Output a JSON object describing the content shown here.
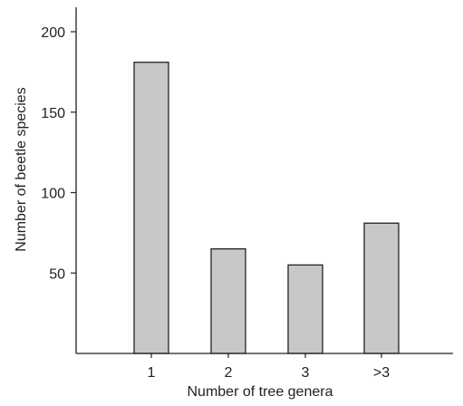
{
  "chart_data": {
    "type": "bar",
    "title": "",
    "xlabel": "Number of tree genera",
    "ylabel": "Number of beetle species",
    "categories": [
      "1",
      "2",
      "3",
      ">3"
    ],
    "values": [
      181,
      65,
      55,
      81
    ],
    "ylim": [
      0,
      210
    ],
    "yticks": [
      50,
      100,
      150,
      200
    ],
    "grid": false,
    "legend": "none",
    "colors": {
      "bar_fill": "#c8c8c8",
      "bar_stroke": "#222222",
      "axis": "#222222"
    }
  }
}
